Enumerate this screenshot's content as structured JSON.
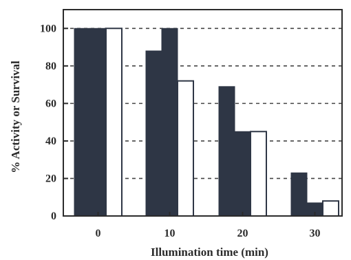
{
  "chart_data": {
    "type": "bar",
    "categories": [
      "0",
      "10",
      "20",
      "30"
    ],
    "series": [
      {
        "values": [
          100,
          88,
          69,
          23
        ],
        "color": "#2e3645",
        "fill": "solid"
      },
      {
        "values": [
          100,
          100,
          45,
          7
        ],
        "color": "#2e3645",
        "fill": "solid"
      },
      {
        "values": [
          100,
          72,
          45,
          8
        ],
        "color": "#ffffff",
        "fill": "open"
      }
    ],
    "xlabel": "Illumination time (min)",
    "ylabel": "% Activity or Survival",
    "ylim": [
      0,
      100
    ],
    "yticks": [
      "0",
      "20",
      "40",
      "60",
      "80",
      "100"
    ],
    "yaxis_top": 110,
    "grid": "dashed horizontal"
  }
}
